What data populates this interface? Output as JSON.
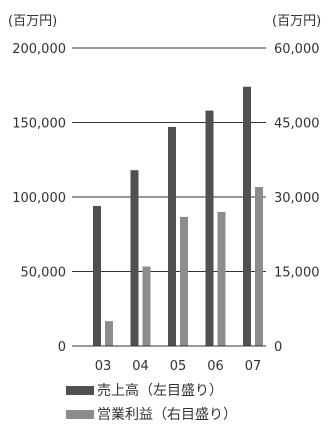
{
  "chart_data": {
    "type": "bar",
    "categories": [
      "03",
      "04",
      "05",
      "06",
      "07"
    ],
    "series": [
      {
        "name": "売上高（左目盛り）",
        "axis": "left",
        "color": "#505050",
        "values": [
          94000,
          118000,
          147000,
          158000,
          174000
        ]
      },
      {
        "name": "営業利益（右目盛り）",
        "axis": "right",
        "color": "#8c8c8c",
        "values": [
          5000,
          16000,
          26000,
          27000,
          32000
        ]
      }
    ],
    "left_axis": {
      "unit": "(百万円)",
      "ylim": [
        0,
        200000
      ],
      "ticks": [
        "0",
        "50,000",
        "100,000",
        "150,000",
        "200,000"
      ]
    },
    "right_axis": {
      "unit": "(百万円)",
      "ylim": [
        0,
        60000
      ],
      "ticks": [
        "0",
        "15,000",
        "30,000",
        "45,000",
        "60,000"
      ]
    },
    "grid": true,
    "legend_position": "bottom-left"
  }
}
